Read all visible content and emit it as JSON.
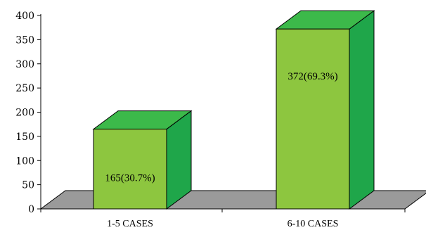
{
  "chart_data": {
    "type": "bar",
    "categories": [
      "1-5 CASES",
      "6-10 CASES"
    ],
    "values": [
      165,
      372
    ],
    "data_labels": [
      "165(30.7%)",
      "372(69.3%)"
    ],
    "ylim": [
      0,
      400
    ],
    "yticks": [
      "0",
      "50",
      "100",
      "150",
      "200",
      "250",
      "300",
      "350",
      "400"
    ],
    "grid": false,
    "style": "3d",
    "colors": {
      "bar_front": "#8dc63f",
      "bar_side": "#1fa64a",
      "bar_top": "#3cb94a",
      "bar_stroke": "#000000",
      "floor": "#9a9a9a",
      "axis": "#000000"
    }
  }
}
